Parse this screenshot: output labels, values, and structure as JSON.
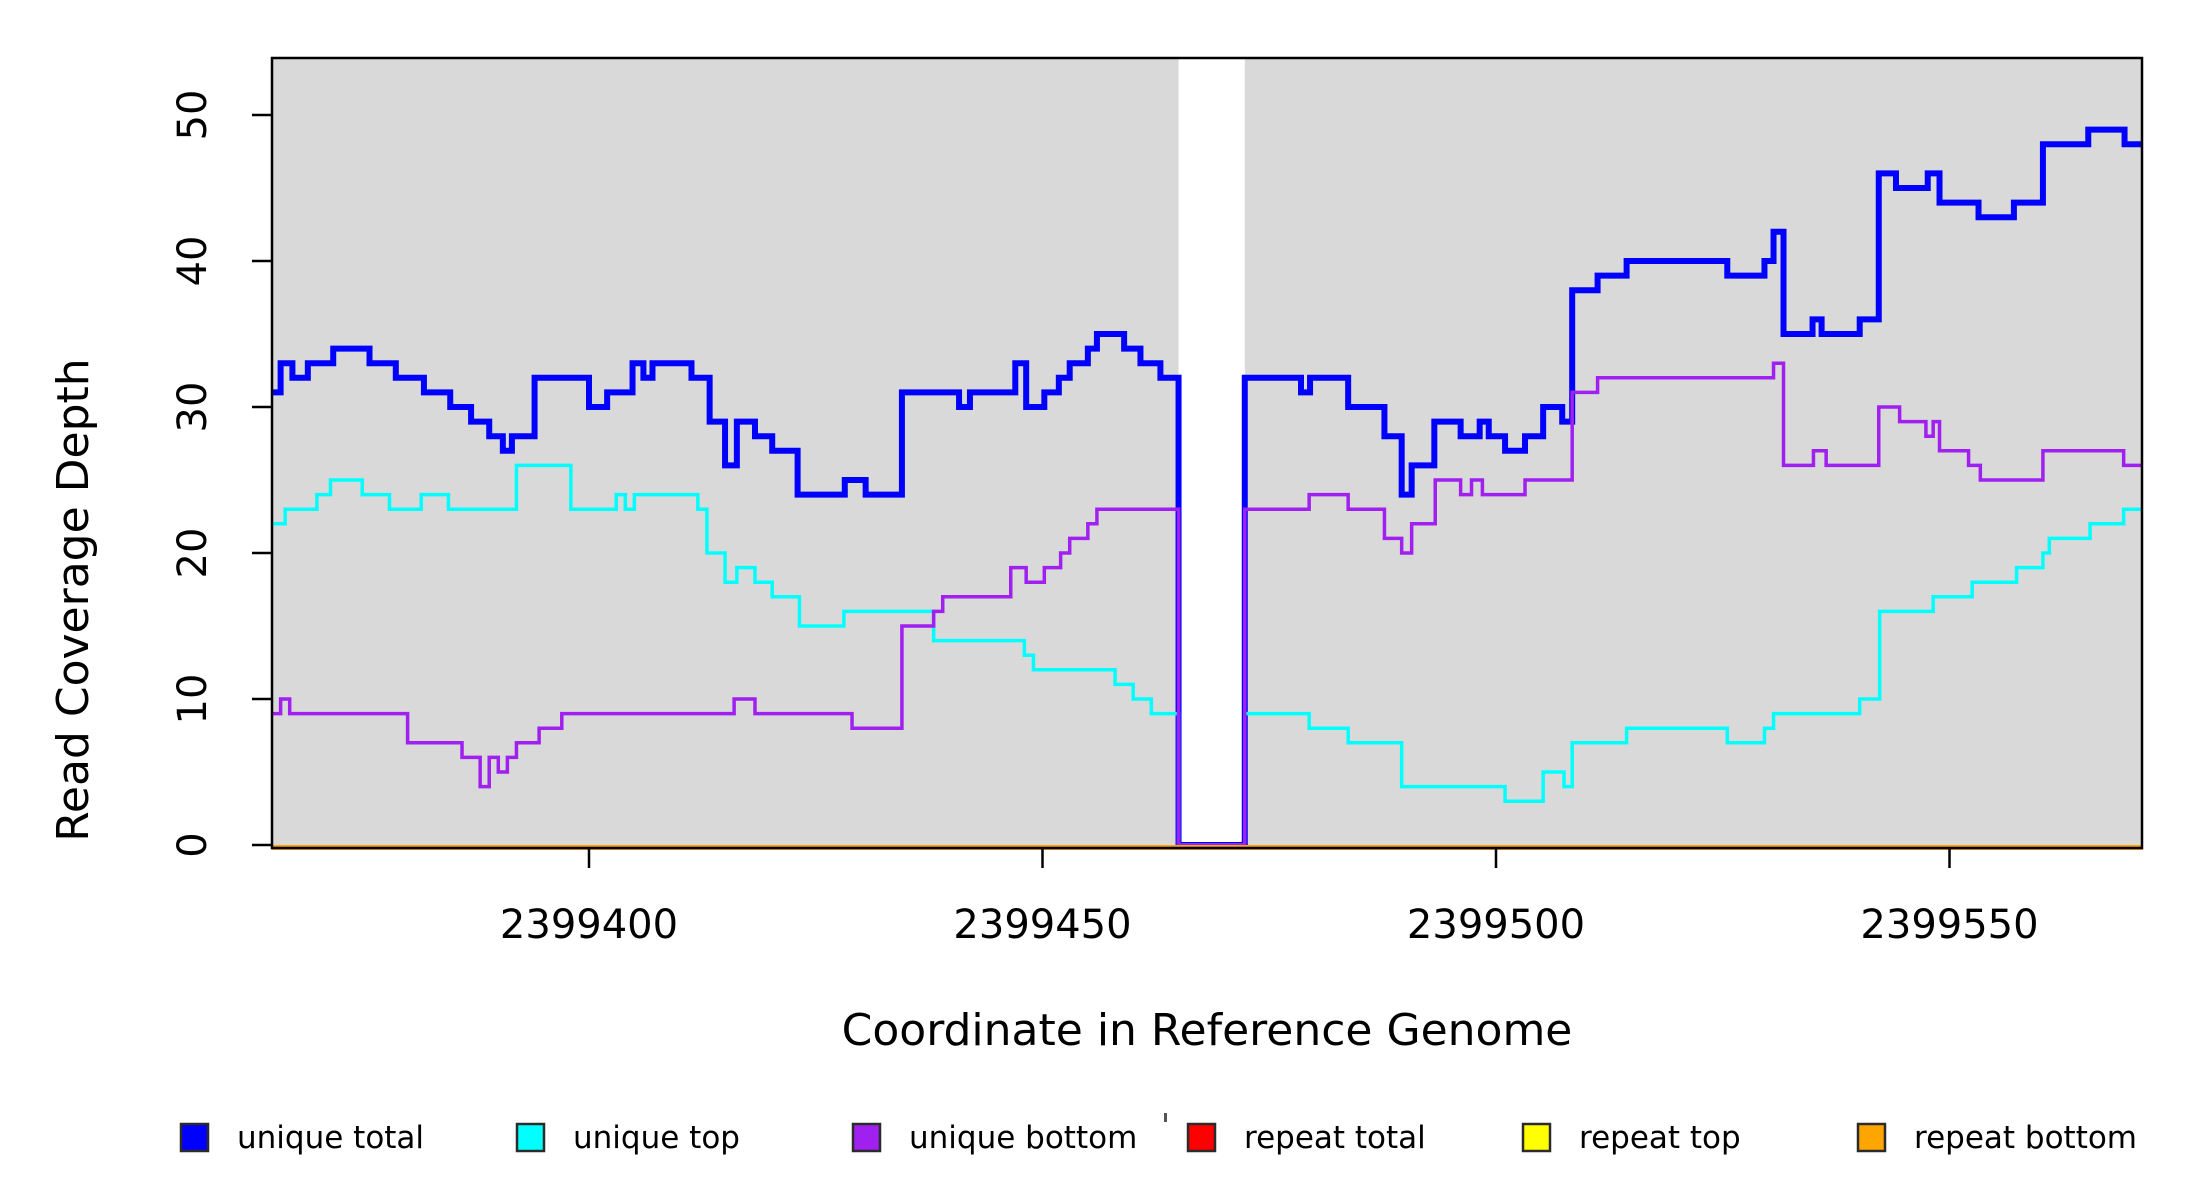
{
  "figure": {
    "xlabel": "Coordinate in Reference Genome",
    "ylabel": "Read Coverage Depth"
  },
  "legend": {
    "entries": [
      {
        "label": "unique total",
        "color": "#0000FF"
      },
      {
        "label": "unique top",
        "color": "#00FFFF"
      },
      {
        "label": "unique bottom",
        "color": "#A020F0"
      },
      {
        "label": "repeat total",
        "color": "#FF0000"
      },
      {
        "label": "repeat top",
        "color": "#FFFF00"
      },
      {
        "label": "repeat bottom",
        "color": "#FFA500"
      }
    ]
  },
  "chart_data": {
    "type": "line",
    "subtype": "step-coverage",
    "title": "",
    "xlabel": "Coordinate in Reference Genome",
    "ylabel": "Read Coverage Depth",
    "xlim": [
      2399365,
      2399571.3
    ],
    "ylim": [
      0,
      54
    ],
    "xticks": [
      2399400,
      2399450,
      2399500,
      2399550
    ],
    "yticks": [
      0,
      10,
      20,
      30,
      40,
      50
    ],
    "plot_background": "#D9D9D9",
    "gap_region": {
      "from": 2399465,
      "to": 2399472.3,
      "fill": "#FFFFFF"
    },
    "grid": false,
    "legend_position": "bottom",
    "series": [
      {
        "name": "unique total",
        "color": "#0000FF",
        "width": 6,
        "steps": [
          [
            2399365,
            31
          ],
          [
            2399366,
            33
          ],
          [
            2399367.3,
            32
          ],
          [
            2399369,
            33
          ],
          [
            2399371.8,
            34
          ],
          [
            2399375.8,
            33
          ],
          [
            2399378.7,
            32
          ],
          [
            2399381.8,
            31
          ],
          [
            2399384.7,
            30
          ],
          [
            2399387,
            29
          ],
          [
            2399389,
            28
          ],
          [
            2399390.5,
            27
          ],
          [
            2399391.5,
            28
          ],
          [
            2399394,
            32
          ],
          [
            2399400,
            30
          ],
          [
            2399402,
            31
          ],
          [
            2399404.8,
            33
          ],
          [
            2399406,
            32
          ],
          [
            2399407,
            33
          ],
          [
            2399411.3,
            32
          ],
          [
            2399413.3,
            29
          ],
          [
            2399415,
            26
          ],
          [
            2399416.3,
            29
          ],
          [
            2399418.3,
            28
          ],
          [
            2399420.2,
            27
          ],
          [
            2399423,
            24
          ],
          [
            2399428.2,
            25
          ],
          [
            2399430.5,
            24
          ],
          [
            2399434.5,
            31
          ],
          [
            2399440.8,
            30
          ],
          [
            2399442,
            31
          ],
          [
            2399447,
            33
          ],
          [
            2399448.2,
            30
          ],
          [
            2399450.2,
            31
          ],
          [
            2399451.8,
            32
          ],
          [
            2399453,
            33
          ],
          [
            2399455,
            34
          ],
          [
            2399456,
            35
          ],
          [
            2399459,
            34
          ],
          [
            2399460.8,
            33
          ],
          [
            2399463,
            32
          ],
          [
            2399465,
            0
          ],
          [
            2399472.3,
            32
          ],
          [
            2399478.5,
            31
          ],
          [
            2399479.5,
            32
          ],
          [
            2399483.7,
            30
          ],
          [
            2399487.7,
            28
          ],
          [
            2399489.6,
            24
          ],
          [
            2399490.7,
            26
          ],
          [
            2399493.2,
            29
          ],
          [
            2399496.1,
            28
          ],
          [
            2399498.2,
            29
          ],
          [
            2399499.2,
            28
          ],
          [
            2399501,
            27
          ],
          [
            2399503.2,
            28
          ],
          [
            2399505.2,
            30
          ],
          [
            2399507.3,
            29
          ],
          [
            2399508.4,
            38
          ],
          [
            2399511.2,
            39
          ],
          [
            2399514.4,
            40
          ],
          [
            2399525.5,
            39
          ],
          [
            2399529.6,
            40
          ],
          [
            2399530.6,
            42
          ],
          [
            2399531.7,
            35
          ],
          [
            2399534.9,
            36
          ],
          [
            2399535.9,
            35
          ],
          [
            2399540.1,
            36
          ],
          [
            2399542.2,
            46
          ],
          [
            2399544.1,
            45
          ],
          [
            2399547.6,
            46
          ],
          [
            2399548.9,
            44
          ],
          [
            2399553.2,
            43
          ],
          [
            2399557.1,
            44
          ],
          [
            2399560.3,
            48
          ],
          [
            2399565.3,
            49
          ],
          [
            2399569.3,
            48
          ],
          [
            2399571.3,
            48
          ]
        ]
      },
      {
        "name": "unique top",
        "color": "#00FFFF",
        "width": 3.5,
        "steps": [
          [
            2399365,
            22
          ],
          [
            2399366.5,
            23
          ],
          [
            2399370,
            24
          ],
          [
            2399371.5,
            25
          ],
          [
            2399375,
            24
          ],
          [
            2399378,
            23
          ],
          [
            2399381.5,
            24
          ],
          [
            2399384.5,
            23
          ],
          [
            2399392,
            26
          ],
          [
            2399398,
            23
          ],
          [
            2399403,
            24
          ],
          [
            2399404,
            23
          ],
          [
            2399405,
            24
          ],
          [
            2399412,
            23
          ],
          [
            2399413,
            20
          ],
          [
            2399415,
            18
          ],
          [
            2399416.3,
            19
          ],
          [
            2399418.3,
            18
          ],
          [
            2399420.2,
            17
          ],
          [
            2399423.2,
            15
          ],
          [
            2399428.1,
            16
          ],
          [
            2399438,
            14
          ],
          [
            2399448,
            13
          ],
          [
            2399449,
            12
          ],
          [
            2399458,
            11
          ],
          [
            2399460,
            10
          ],
          [
            2399462,
            9
          ],
          [
            2399465,
            0
          ],
          [
            2399472.3,
            9
          ],
          [
            2399479.4,
            8
          ],
          [
            2399483.7,
            7
          ],
          [
            2399489.6,
            4
          ],
          [
            2399501,
            3
          ],
          [
            2399505.2,
            5
          ],
          [
            2399507.5,
            4
          ],
          [
            2399508.4,
            7
          ],
          [
            2399514.4,
            8
          ],
          [
            2399525.5,
            7
          ],
          [
            2399529.6,
            8
          ],
          [
            2399530.6,
            9
          ],
          [
            2399540.1,
            10
          ],
          [
            2399542.3,
            16
          ],
          [
            2399548.2,
            17
          ],
          [
            2399552.5,
            18
          ],
          [
            2399557.4,
            19
          ],
          [
            2399560.3,
            20
          ],
          [
            2399561,
            21
          ],
          [
            2399565.5,
            22
          ],
          [
            2399569.2,
            23
          ],
          [
            2399571.3,
            23
          ]
        ]
      },
      {
        "name": "unique bottom",
        "color": "#A020F0",
        "width": 3.5,
        "steps": [
          [
            2399365,
            9
          ],
          [
            2399366,
            10
          ],
          [
            2399367,
            9
          ],
          [
            2399380,
            7
          ],
          [
            2399386,
            6
          ],
          [
            2399388,
            4
          ],
          [
            2399389,
            6
          ],
          [
            2399390,
            5
          ],
          [
            2399391,
            6
          ],
          [
            2399392,
            7
          ],
          [
            2399394.5,
            8
          ],
          [
            2399397,
            9
          ],
          [
            2399416,
            10
          ],
          [
            2399418.3,
            9
          ],
          [
            2399429,
            8
          ],
          [
            2399434.5,
            15
          ],
          [
            2399438,
            16
          ],
          [
            2399439,
            17
          ],
          [
            2399446.5,
            19
          ],
          [
            2399448.2,
            18
          ],
          [
            2399450.2,
            19
          ],
          [
            2399452,
            20
          ],
          [
            2399453,
            21
          ],
          [
            2399455,
            22
          ],
          [
            2399456,
            23
          ],
          [
            2399465,
            0
          ],
          [
            2399472.3,
            23
          ],
          [
            2399479.4,
            24
          ],
          [
            2399483.7,
            23
          ],
          [
            2399487.7,
            21
          ],
          [
            2399489.6,
            20
          ],
          [
            2399490.7,
            22
          ],
          [
            2399493.3,
            25
          ],
          [
            2399496.1,
            24
          ],
          [
            2399497.3,
            25
          ],
          [
            2399498.5,
            24
          ],
          [
            2399503.2,
            25
          ],
          [
            2399508.4,
            31
          ],
          [
            2399511.2,
            32
          ],
          [
            2399530.6,
            33
          ],
          [
            2399531.7,
            26
          ],
          [
            2399535,
            27
          ],
          [
            2399536.4,
            26
          ],
          [
            2399542.2,
            30
          ],
          [
            2399544.5,
            29
          ],
          [
            2399547.4,
            28
          ],
          [
            2399548.2,
            29
          ],
          [
            2399548.9,
            27
          ],
          [
            2399552.1,
            26
          ],
          [
            2399553.4,
            25
          ],
          [
            2399560.3,
            27
          ],
          [
            2399569.2,
            26
          ],
          [
            2399571.3,
            26
          ]
        ]
      },
      {
        "name": "repeat total",
        "color": "#FF0000",
        "width": 3,
        "steps": [
          [
            2399365,
            0
          ],
          [
            2399571.3,
            0
          ]
        ]
      },
      {
        "name": "repeat top",
        "color": "#FFFF00",
        "width": 3,
        "steps": [
          [
            2399365,
            0
          ],
          [
            2399571.3,
            0
          ]
        ]
      },
      {
        "name": "repeat bottom",
        "color": "#FFA500",
        "width": 5,
        "steps": [
          [
            2399365,
            0
          ],
          [
            2399571.3,
            0
          ]
        ]
      }
    ]
  }
}
